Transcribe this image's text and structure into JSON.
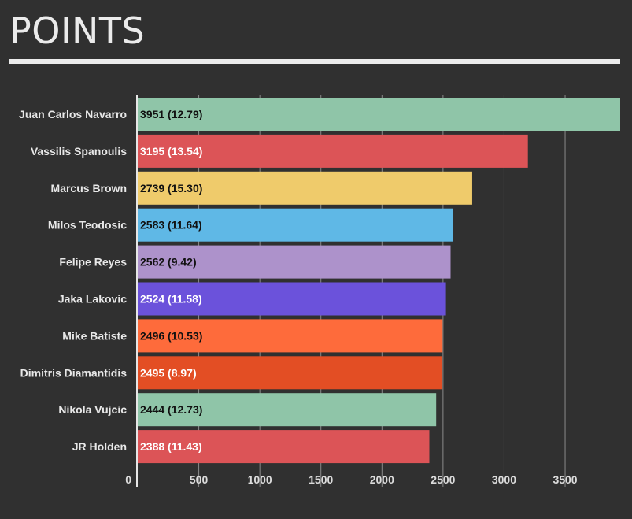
{
  "title": "POINTS",
  "chart_data": {
    "type": "bar",
    "orientation": "horizontal",
    "title": "POINTS",
    "categories": [
      "Juan Carlos Navarro",
      "Vassilis Spanoulis",
      "Marcus Brown",
      "Milos Teodosic",
      "Felipe Reyes",
      "Jaka Lakovic",
      "Mike Batiste",
      "Dimitris Diamantidis",
      "Nikola Vujcic",
      "JR Holden"
    ],
    "values": [
      3951,
      3195,
      2739,
      2583,
      2562,
      2524,
      2496,
      2495,
      2444,
      2388
    ],
    "data_labels": [
      "3951 (12.79)",
      "3195 (13.54)",
      "2739 (15.30)",
      "2583 (11.64)",
      "2562 (9.42)",
      "2524 (11.58)",
      "2496 (10.53)",
      "2495 (8.97)",
      "2444 (12.73)",
      "2388 (11.43)"
    ],
    "colors": [
      "#8fc5a8",
      "#dc5457",
      "#efcb6b",
      "#5fb8e6",
      "#ad92cb",
      "#6b52db",
      "#fe6b3b",
      "#e34e24",
      "#8fc5a8",
      "#dc5457"
    ],
    "label_colors": [
      "#111111",
      "#ffffff",
      "#111111",
      "#111111",
      "#111111",
      "#ffffff",
      "#111111",
      "#ffffff",
      "#111111",
      "#ffffff"
    ],
    "x_ticks": [
      "0",
      "500",
      "1000",
      "1500",
      "2000",
      "2500",
      "3000",
      "3500"
    ],
    "xlim": [
      0,
      3951
    ],
    "grid": true
  }
}
